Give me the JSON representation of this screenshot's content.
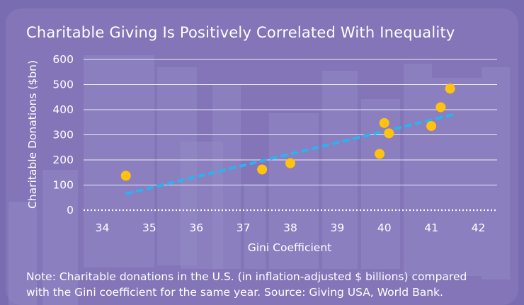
{
  "colors": {
    "background": "#7a6cb0",
    "panel": "#8a7dc0",
    "skyline": "#9c92cc",
    "gridline": "#ffffff",
    "point": "#ffc20e",
    "trendline": "#2bb3f0",
    "text": "#ffffff"
  },
  "chart_data": {
    "type": "scatter",
    "title": "Charitable Giving Is Positively Correlated With Inequality",
    "xlabel": "Gini Coefficient",
    "ylabel": "Charitable Donations ($bn)",
    "xlim": [
      33.6,
      42.4
    ],
    "ylim": [
      0,
      600
    ],
    "xticks": [
      34,
      35,
      36,
      37,
      38,
      39,
      40,
      41,
      42
    ],
    "yticks": [
      0,
      100,
      200,
      300,
      400,
      500,
      600
    ],
    "grid": true,
    "series": [
      {
        "name": "Charitable donations",
        "points": [
          {
            "x": 34.5,
            "y": 137
          },
          {
            "x": 37.4,
            "y": 162
          },
          {
            "x": 38.0,
            "y": 187
          },
          {
            "x": 39.9,
            "y": 224
          },
          {
            "x": 40.0,
            "y": 347
          },
          {
            "x": 40.1,
            "y": 306
          },
          {
            "x": 41.0,
            "y": 335
          },
          {
            "x": 41.2,
            "y": 410
          },
          {
            "x": 41.4,
            "y": 484
          }
        ]
      }
    ],
    "trendline": {
      "x": [
        34.5,
        41.5
      ],
      "y": [
        65,
        382
      ],
      "style": "dashed"
    }
  },
  "note": {
    "line1": "Note: Charitable donations in the U.S. (in inflation-adjusted $ billions) compared",
    "line2": "with the Gini coefficient for the same year. Source: Giving USA, World Bank."
  }
}
